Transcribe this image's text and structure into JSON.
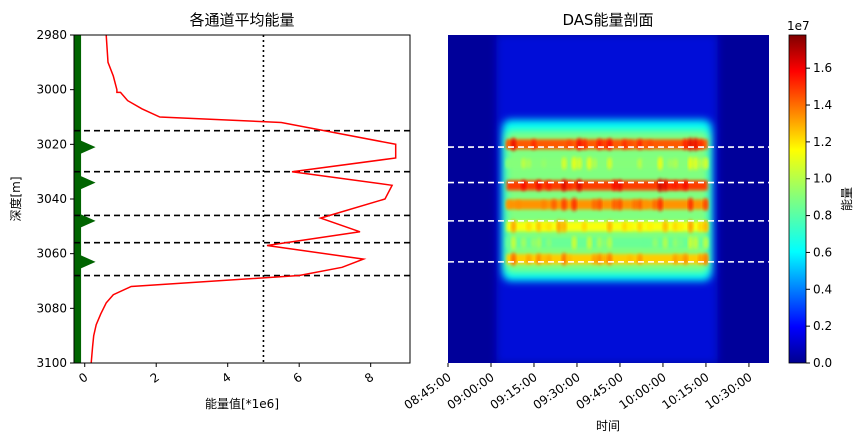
{
  "chart_data": [
    {
      "type": "line",
      "title": "各通道平均能量",
      "xlabel": "能量值[*1e6]",
      "ylabel": "深度[m]",
      "xlim": [
        -0.3,
        9.1
      ],
      "ylim": [
        3100,
        2980
      ],
      "xticks": [
        "0",
        "2",
        "4",
        "6",
        "8"
      ],
      "yticks": [
        "2980",
        "3000",
        "3020",
        "3040",
        "3060",
        "3080",
        "3100"
      ],
      "series": [
        {
          "color": "#ff0000",
          "points": [
            [
              0.6,
              2980
            ],
            [
              0.65,
              2990
            ],
            [
              0.8,
              2995
            ],
            [
              0.9,
              3000
            ],
            [
              0.9,
              3001
            ],
            [
              1.0,
              3001
            ],
            [
              1.2,
              3004
            ],
            [
              1.6,
              3007
            ],
            [
              2.1,
              3010
            ],
            [
              5.5,
              3012
            ],
            [
              8.7,
              3020
            ],
            [
              8.7,
              3025
            ],
            [
              5.8,
              3030
            ],
            [
              8.6,
              3035
            ],
            [
              8.4,
              3040
            ],
            [
              6.6,
              3047
            ],
            [
              7.7,
              3052
            ],
            [
              5.1,
              3057
            ],
            [
              7.8,
              3062
            ],
            [
              7.2,
              3065
            ],
            [
              6.0,
              3068
            ],
            [
              1.3,
              3072
            ],
            [
              0.8,
              3075
            ],
            [
              0.6,
              3078
            ],
            [
              0.45,
              3082
            ],
            [
              0.32,
              3086
            ],
            [
              0.25,
              3090
            ],
            [
              0.22,
              3094
            ],
            [
              0.18,
              3100
            ]
          ]
        }
      ],
      "vline_x": 5,
      "hlines": [
        3015,
        3030,
        3046,
        3056,
        3068
      ],
      "vertical_bar": {
        "x": -0.2,
        "color": "#006400"
      },
      "triangle_markers": {
        "depths": [
          3021,
          3034,
          3048,
          3063
        ],
        "color": "#006400"
      }
    },
    {
      "type": "heatmap",
      "title": "DAS能量剖面",
      "xlabel": "时间",
      "colormap": "jet",
      "time_ticks": [
        "08:45:00",
        "09:00:00",
        "09:15:00",
        "09:30:00",
        "09:45:00",
        "10:00:00",
        "10:15:00",
        "10:30:00"
      ],
      "time_range": [
        "08:45:00",
        "10:37:00"
      ],
      "depth_range": [
        2980,
        3100
      ],
      "active_window": [
        "09:04:00",
        "10:17:00"
      ],
      "dashed_depths": [
        3021,
        3034,
        3048,
        3063
      ],
      "band_intensity": [
        {
          "depth": 3020,
          "value": 14000000.0
        },
        {
          "depth": 3027,
          "value": 9000000.0
        },
        {
          "depth": 3035,
          "value": 14500000.0
        },
        {
          "depth": 3042,
          "value": 13000000.0
        },
        {
          "depth": 3050,
          "value": 11000000.0
        },
        {
          "depth": 3056,
          "value": 8500000.0
        },
        {
          "depth": 3062,
          "value": 12000000.0
        }
      ],
      "colorbar": {
        "label": "能量",
        "multiplier": "1e7",
        "min": 0,
        "max": 1.78,
        "ticks": [
          "0.0",
          "0.2",
          "0.4",
          "0.6",
          "0.8",
          "1.0",
          "1.2",
          "1.4",
          "1.6"
        ]
      }
    }
  ]
}
